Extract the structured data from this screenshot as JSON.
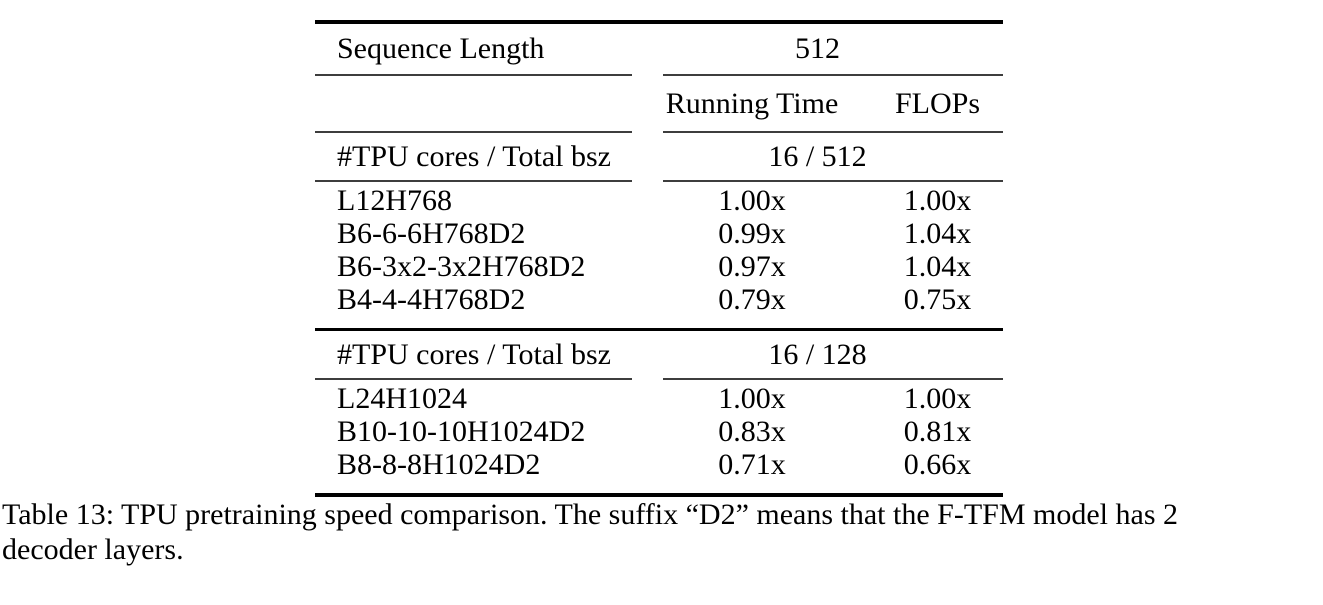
{
  "table": {
    "header": {
      "col0_label": "Sequence Length",
      "seq_value": "512",
      "running_time_label": "Running Time",
      "flops_label": "FLOPs"
    },
    "sections": [
      {
        "group_label": "#TPU cores / Total bsz",
        "group_value": "16 / 512",
        "rows": [
          {
            "model": "L12H768",
            "running_time": "1.00x",
            "flops": "1.00x"
          },
          {
            "model": "B6-6-6H768D2",
            "running_time": "0.99x",
            "flops": "1.04x"
          },
          {
            "model": "B6-3x2-3x2H768D2",
            "running_time": "0.97x",
            "flops": "1.04x"
          },
          {
            "model": "B4-4-4H768D2",
            "running_time": "0.79x",
            "flops": "0.75x"
          }
        ]
      },
      {
        "group_label": "#TPU cores / Total bsz",
        "group_value": "16 / 128",
        "rows": [
          {
            "model": "L24H1024",
            "running_time": "1.00x",
            "flops": "1.00x"
          },
          {
            "model": "B10-10-10H1024D2",
            "running_time": "0.83x",
            "flops": "0.81x"
          },
          {
            "model": "B8-8-8H1024D2",
            "running_time": "0.71x",
            "flops": "0.66x"
          }
        ]
      }
    ]
  },
  "caption": {
    "line1": "Table 13: TPU pretraining speed comparison. The suffix “D2” means that the F-TFM model has 2",
    "line2": "decoder layers."
  }
}
